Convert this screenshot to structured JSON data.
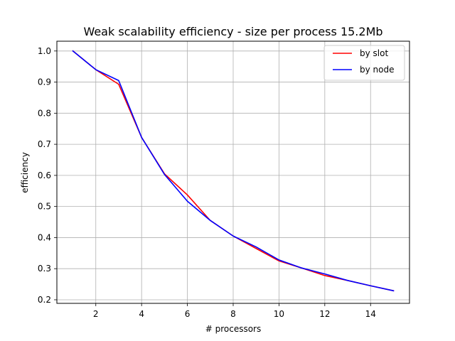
{
  "chart_data": {
    "type": "line",
    "title": "Weak scalability efficiency - size per process 15.2Mb",
    "xlabel": "# processors",
    "ylabel": "efficiency",
    "xlim": [
      0.3,
      15.7
    ],
    "ylim": [
      0.1885,
      1.0315
    ],
    "xticks": [
      2,
      4,
      6,
      8,
      10,
      12,
      14
    ],
    "yticks": [
      0.2,
      0.3,
      0.4,
      0.5,
      0.6,
      0.7,
      0.8,
      0.9,
      1.0
    ],
    "xtick_labels": [
      "2",
      "4",
      "6",
      "8",
      "10",
      "12",
      "14"
    ],
    "ytick_labels": [
      "0.2",
      "0.3",
      "0.4",
      "0.5",
      "0.6",
      "0.7",
      "0.8",
      "0.9",
      "1.0"
    ],
    "grid": true,
    "legend_position": "top-right",
    "x": [
      1,
      2,
      3,
      4,
      5,
      6,
      7,
      8,
      9,
      10,
      11,
      12,
      13,
      14,
      15
    ],
    "series": [
      {
        "name": "by slot",
        "color": "#ff0000",
        "values": [
          1.0,
          0.94,
          0.893,
          0.722,
          0.605,
          0.537,
          0.455,
          0.405,
          0.365,
          0.325,
          0.302,
          0.278,
          0.262,
          0.245,
          0.229
        ]
      },
      {
        "name": "by node",
        "color": "#0000ff",
        "values": [
          1.0,
          0.94,
          0.905,
          0.722,
          0.603,
          0.517,
          0.455,
          0.405,
          0.37,
          0.328,
          0.302,
          0.283,
          0.262,
          0.245,
          0.229
        ]
      }
    ],
    "grid_color": "#b0b0b0",
    "frame_color": "#000000"
  }
}
